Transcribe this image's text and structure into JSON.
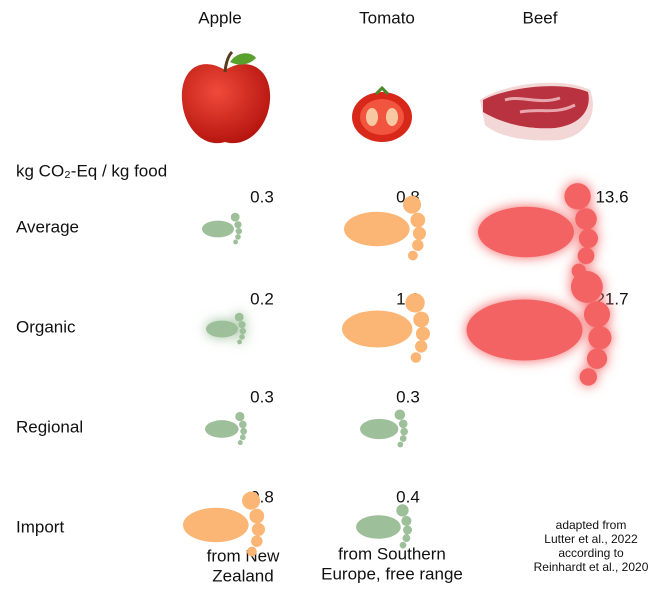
{
  "columns": [
    "Apple",
    "Tomato",
    "Beef"
  ],
  "unit_label": "kg CO₂-Eq / kg food",
  "rows": [
    {
      "label": "Average",
      "values": [
        0.3,
        0.8,
        13.6
      ]
    },
    {
      "label": "Organic",
      "values": [
        0.2,
        1.1,
        21.7
      ]
    },
    {
      "label": "Regional",
      "values": [
        0.3,
        0.3
      ]
    },
    {
      "label": "Import",
      "values": [
        0.8,
        0.4
      ]
    }
  ],
  "notes": [
    [
      "from New",
      "Zealand"
    ],
    [
      "from Southern",
      "Europe, free range"
    ]
  ],
  "source": [
    "adapted from",
    "Lutter et al., 2022",
    "according to",
    "Reinhardt et al., 2020"
  ]
}
